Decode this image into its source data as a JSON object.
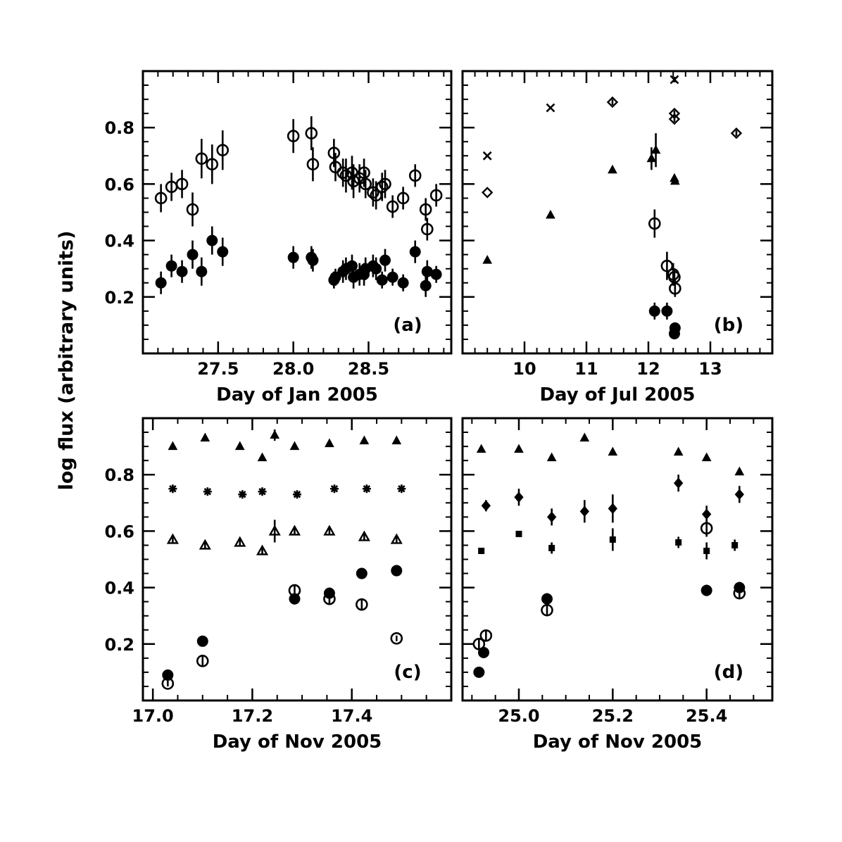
{
  "figure": {
    "ylabel": "log flux (arbitrary units)"
  },
  "chart_data": [
    {
      "type": "scatter",
      "panel_label": "(a)",
      "xlabel": "Day of Jan 2005",
      "ylabel": "log flux (arbitrary units)",
      "xlim": [
        27.0,
        29.05
      ],
      "ylim": [
        0.0,
        1.0
      ],
      "xticks": [
        {
          "v": 27.5,
          "label": "27.5"
        },
        {
          "v": 28.0,
          "label": "28.0"
        },
        {
          "v": 28.5,
          "label": "28.5"
        }
      ],
      "yticks": [
        {
          "v": 0.2,
          "label": "0.2"
        },
        {
          "v": 0.4,
          "label": "0.4"
        },
        {
          "v": 0.6,
          "label": "0.6"
        },
        {
          "v": 0.8,
          "label": "0.8"
        }
      ],
      "xminor": 0.1,
      "yminor": 0.05,
      "series": [
        {
          "marker": "open-circle",
          "points": [
            [
              27.12,
              0.55,
              0.05
            ],
            [
              27.19,
              0.59,
              0.05
            ],
            [
              27.26,
              0.6,
              0.05
            ],
            [
              27.33,
              0.51,
              0.06
            ],
            [
              27.39,
              0.69,
              0.07
            ],
            [
              27.46,
              0.67,
              0.07
            ],
            [
              27.53,
              0.72,
              0.07
            ],
            [
              28.0,
              0.77,
              0.06
            ],
            [
              28.12,
              0.78,
              0.06
            ],
            [
              28.13,
              0.67,
              0.06
            ],
            [
              28.27,
              0.71,
              0.05
            ],
            [
              28.28,
              0.66,
              0.05
            ],
            [
              28.33,
              0.64,
              0.05
            ],
            [
              28.35,
              0.63,
              0.06
            ],
            [
              28.39,
              0.64,
              0.06
            ],
            [
              28.4,
              0.61,
              0.06
            ],
            [
              28.44,
              0.62,
              0.05
            ],
            [
              28.47,
              0.64,
              0.05
            ],
            [
              28.48,
              0.6,
              0.05
            ],
            [
              28.53,
              0.57,
              0.05
            ],
            [
              28.55,
              0.56,
              0.05
            ],
            [
              28.59,
              0.59,
              0.05
            ],
            [
              28.61,
              0.6,
              0.05
            ],
            [
              28.66,
              0.52,
              0.04
            ],
            [
              28.73,
              0.55,
              0.04
            ],
            [
              28.81,
              0.63,
              0.04
            ],
            [
              28.88,
              0.51,
              0.04
            ],
            [
              28.89,
              0.44,
              0.04
            ],
            [
              28.95,
              0.56,
              0.04
            ]
          ]
        },
        {
          "marker": "filled-circle",
          "points": [
            [
              27.12,
              0.25,
              0.04
            ],
            [
              27.19,
              0.31,
              0.04
            ],
            [
              27.26,
              0.29,
              0.04
            ],
            [
              27.33,
              0.35,
              0.05
            ],
            [
              27.39,
              0.29,
              0.05
            ],
            [
              27.46,
              0.4,
              0.05
            ],
            [
              27.53,
              0.36,
              0.05
            ],
            [
              28.0,
              0.34,
              0.04
            ],
            [
              28.12,
              0.34,
              0.04
            ],
            [
              28.13,
              0.33,
              0.04
            ],
            [
              28.27,
              0.26,
              0.03
            ],
            [
              28.28,
              0.27,
              0.03
            ],
            [
              28.33,
              0.29,
              0.04
            ],
            [
              28.35,
              0.3,
              0.04
            ],
            [
              28.39,
              0.31,
              0.04
            ],
            [
              28.4,
              0.27,
              0.04
            ],
            [
              28.44,
              0.28,
              0.04
            ],
            [
              28.47,
              0.28,
              0.04
            ],
            [
              28.48,
              0.3,
              0.04
            ],
            [
              28.53,
              0.31,
              0.04
            ],
            [
              28.55,
              0.3,
              0.04
            ],
            [
              28.59,
              0.26,
              0.03
            ],
            [
              28.61,
              0.33,
              0.04
            ],
            [
              28.66,
              0.27,
              0.03
            ],
            [
              28.73,
              0.25,
              0.03
            ],
            [
              28.81,
              0.36,
              0.04
            ],
            [
              28.88,
              0.24,
              0.04
            ],
            [
              28.89,
              0.29,
              0.04
            ],
            [
              28.95,
              0.28,
              0.03
            ]
          ]
        }
      ]
    },
    {
      "type": "scatter",
      "panel_label": "(b)",
      "xlabel": "Day of Jul 2005",
      "ylabel": "",
      "xlim": [
        9.0,
        14.0
      ],
      "ylim": [
        0.0,
        1.0
      ],
      "xticks": [
        {
          "v": 10,
          "label": "10"
        },
        {
          "v": 11,
          "label": "11"
        },
        {
          "v": 12,
          "label": "12"
        },
        {
          "v": 13,
          "label": "13"
        }
      ],
      "yticks": [
        {
          "v": 0.2,
          "label": ""
        },
        {
          "v": 0.4,
          "label": ""
        },
        {
          "v": 0.6,
          "label": ""
        },
        {
          "v": 0.8,
          "label": ""
        }
      ],
      "xminor": 0.2,
      "yminor": 0.05,
      "series": [
        {
          "marker": "cross",
          "points": [
            [
              9.4,
              0.7,
              0.0
            ],
            [
              10.42,
              0.87,
              0.0
            ],
            [
              12.42,
              0.97,
              0.01
            ]
          ]
        },
        {
          "marker": "open-diamond",
          "points": [
            [
              9.4,
              0.57,
              0.0
            ],
            [
              11.42,
              0.89,
              0.01
            ],
            [
              12.42,
              0.85,
              0.01
            ],
            [
              12.42,
              0.83,
              0.01
            ],
            [
              13.42,
              0.78,
              0.01
            ]
          ]
        },
        {
          "marker": "filled-triangle",
          "points": [
            [
              9.4,
              0.33,
              0.0
            ],
            [
              10.42,
              0.49,
              0.0
            ],
            [
              11.42,
              0.65,
              0.0
            ],
            [
              12.05,
              0.69,
              0.04
            ],
            [
              12.12,
              0.72,
              0.06
            ],
            [
              12.42,
              0.62,
              0.01
            ],
            [
              12.43,
              0.61,
              0.01
            ]
          ]
        },
        {
          "marker": "open-circle",
          "points": [
            [
              12.1,
              0.46,
              0.05
            ],
            [
              12.3,
              0.31,
              0.05
            ],
            [
              12.4,
              0.28,
              0.04
            ],
            [
              12.42,
              0.27,
              0.03
            ],
            [
              12.43,
              0.23,
              0.03
            ]
          ]
        },
        {
          "marker": "filled-circle",
          "points": [
            [
              12.1,
              0.15,
              0.03
            ],
            [
              12.3,
              0.15,
              0.03
            ],
            [
              12.43,
              0.09,
              0.02
            ],
            [
              12.42,
              0.07,
              0.02
            ]
          ]
        }
      ]
    },
    {
      "type": "scatter",
      "panel_label": "(c)",
      "xlabel": "Day of Nov 2005",
      "ylabel": "log flux (arbitrary units)",
      "xlim": [
        16.98,
        17.6
      ],
      "ylim": [
        0.0,
        1.0
      ],
      "xticks": [
        {
          "v": 17.0,
          "label": "17.0"
        },
        {
          "v": 17.2,
          "label": "17.2"
        },
        {
          "v": 17.4,
          "label": "17.4"
        }
      ],
      "yticks": [
        {
          "v": 0.2,
          "label": "0.2"
        },
        {
          "v": 0.4,
          "label": "0.4"
        },
        {
          "v": 0.6,
          "label": "0.6"
        },
        {
          "v": 0.8,
          "label": "0.8"
        }
      ],
      "xminor": 0.05,
      "yminor": 0.05,
      "series": [
        {
          "marker": "filled-triangle",
          "points": [
            [
              17.04,
              0.9,
              0.01
            ],
            [
              17.105,
              0.93,
              0.01
            ],
            [
              17.175,
              0.9,
              0.01
            ],
            [
              17.22,
              0.86,
              0.01
            ],
            [
              17.245,
              0.94,
              0.02
            ],
            [
              17.285,
              0.9,
              0.01
            ],
            [
              17.355,
              0.91,
              0.01
            ],
            [
              17.425,
              0.92,
              0.01
            ],
            [
              17.49,
              0.92,
              0.01
            ]
          ]
        },
        {
          "marker": "star",
          "points": [
            [
              17.04,
              0.75,
              0.01
            ],
            [
              17.11,
              0.74,
              0.01
            ],
            [
              17.18,
              0.73,
              0.01
            ],
            [
              17.22,
              0.74,
              0.01
            ],
            [
              17.29,
              0.73,
              0.01
            ],
            [
              17.365,
              0.75,
              0.01
            ],
            [
              17.43,
              0.75,
              0.01
            ],
            [
              17.5,
              0.75,
              0.01
            ]
          ]
        },
        {
          "marker": "open-triangle",
          "points": [
            [
              17.04,
              0.57,
              0.01
            ],
            [
              17.105,
              0.55,
              0.01
            ],
            [
              17.175,
              0.56,
              0.01
            ],
            [
              17.22,
              0.53,
              0.01
            ],
            [
              17.245,
              0.6,
              0.04
            ],
            [
              17.285,
              0.6,
              0.01
            ],
            [
              17.355,
              0.6,
              0.01
            ],
            [
              17.425,
              0.58,
              0.01
            ],
            [
              17.49,
              0.57,
              0.01
            ]
          ]
        },
        {
          "marker": "filled-circle",
          "points": [
            [
              17.03,
              0.09,
              0.01
            ],
            [
              17.1,
              0.21,
              0.01
            ],
            [
              17.285,
              0.36,
              0.02
            ],
            [
              17.355,
              0.38,
              0.02
            ],
            [
              17.42,
              0.45,
              0.02
            ],
            [
              17.49,
              0.46,
              0.02
            ]
          ]
        },
        {
          "marker": "open-circle",
          "points": [
            [
              17.03,
              0.06,
              0.01
            ],
            [
              17.1,
              0.14,
              0.02
            ],
            [
              17.285,
              0.39,
              0.02
            ],
            [
              17.355,
              0.36,
              0.02
            ],
            [
              17.42,
              0.34,
              0.02
            ],
            [
              17.49,
              0.22,
              0.01
            ]
          ]
        }
      ]
    },
    {
      "type": "scatter",
      "panel_label": "(d)",
      "xlabel": "Day of Nov 2005",
      "ylabel": "",
      "xlim": [
        24.88,
        25.54
      ],
      "ylim": [
        0.0,
        1.0
      ],
      "xticks": [
        {
          "v": 25.0,
          "label": "25.0"
        },
        {
          "v": 25.2,
          "label": "25.2"
        },
        {
          "v": 25.4,
          "label": "25.4"
        }
      ],
      "yticks": [
        {
          "v": 0.2,
          "label": ""
        },
        {
          "v": 0.4,
          "label": ""
        },
        {
          "v": 0.6,
          "label": ""
        },
        {
          "v": 0.8,
          "label": ""
        }
      ],
      "xminor": 0.05,
      "yminor": 0.05,
      "series": [
        {
          "marker": "filled-triangle",
          "points": [
            [
              24.92,
              0.89,
              0.01
            ],
            [
              25.0,
              0.89,
              0.01
            ],
            [
              25.07,
              0.86,
              0.01
            ],
            [
              25.14,
              0.93,
              0.01
            ],
            [
              25.2,
              0.88,
              0.01
            ],
            [
              25.34,
              0.88,
              0.01
            ],
            [
              25.4,
              0.86,
              0.01
            ],
            [
              25.47,
              0.81,
              0.01
            ]
          ]
        },
        {
          "marker": "filled-diamond",
          "points": [
            [
              24.93,
              0.69,
              0.02
            ],
            [
              25.0,
              0.72,
              0.03
            ],
            [
              25.07,
              0.65,
              0.03
            ],
            [
              25.14,
              0.67,
              0.04
            ],
            [
              25.2,
              0.68,
              0.05
            ],
            [
              25.34,
              0.77,
              0.03
            ],
            [
              25.4,
              0.66,
              0.03
            ],
            [
              25.47,
              0.73,
              0.03
            ]
          ]
        },
        {
          "marker": "filled-square",
          "points": [
            [
              24.92,
              0.53,
              0.01
            ],
            [
              25.0,
              0.59,
              0.01
            ],
            [
              25.07,
              0.54,
              0.02
            ],
            [
              25.2,
              0.57,
              0.04
            ],
            [
              25.34,
              0.56,
              0.02
            ],
            [
              25.4,
              0.53,
              0.03
            ],
            [
              25.46,
              0.55,
              0.02
            ]
          ]
        },
        {
          "marker": "open-circle",
          "points": [
            [
              24.915,
              0.2,
              0.02
            ],
            [
              24.93,
              0.23,
              0.02
            ],
            [
              25.06,
              0.32,
              0.02
            ],
            [
              25.4,
              0.61,
              0.03
            ],
            [
              25.47,
              0.38,
              0.02
            ]
          ]
        },
        {
          "marker": "filled-circle",
          "points": [
            [
              24.915,
              0.1,
              0.01
            ],
            [
              24.925,
              0.17,
              0.01
            ],
            [
              25.06,
              0.36,
              0.02
            ],
            [
              25.4,
              0.39,
              0.02
            ],
            [
              25.47,
              0.4,
              0.02
            ]
          ]
        }
      ]
    }
  ]
}
